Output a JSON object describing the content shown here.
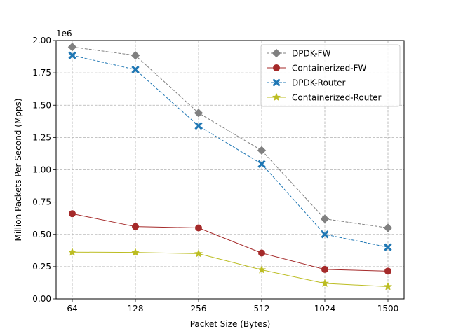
{
  "chart_data": {
    "type": "line",
    "categories": [
      "64",
      "128",
      "256",
      "512",
      "1024",
      "1500"
    ],
    "xlabel": "Packet Size (Bytes)",
    "ylabel": "Million Packets Per Second (Mpps)",
    "y_offset_label": "1e6",
    "ylim": [
      0,
      2000000
    ],
    "yticks": [
      0,
      250000,
      500000,
      750000,
      1000000,
      1250000,
      1500000,
      1750000,
      2000000
    ],
    "ytick_labels": [
      "0.00",
      "0.25",
      "0.50",
      "0.75",
      "1.00",
      "1.25",
      "1.50",
      "1.75",
      "2.00"
    ],
    "grid": true,
    "legend_position": "top-right",
    "series": [
      {
        "name": "DPDK-FW",
        "values": [
          1950000,
          1885000,
          1440000,
          1150000,
          620000,
          550000
        ],
        "color": "#808080",
        "marker": "diamond",
        "dashed": true
      },
      {
        "name": "Containerized-FW",
        "values": [
          660000,
          560000,
          550000,
          355000,
          228000,
          215000
        ],
        "color": "#a52a2a",
        "marker": "circle",
        "dashed": false
      },
      {
        "name": "DPDK-Router",
        "values": [
          1885000,
          1775000,
          1340000,
          1045000,
          500000,
          400000
        ],
        "color": "#1f77b4",
        "marker": "x",
        "dashed": true
      },
      {
        "name": "Containerized-Router",
        "values": [
          362000,
          360000,
          350000,
          225000,
          120000,
          95000
        ],
        "color": "#bcbd22",
        "marker": "star",
        "dashed": false
      }
    ]
  }
}
